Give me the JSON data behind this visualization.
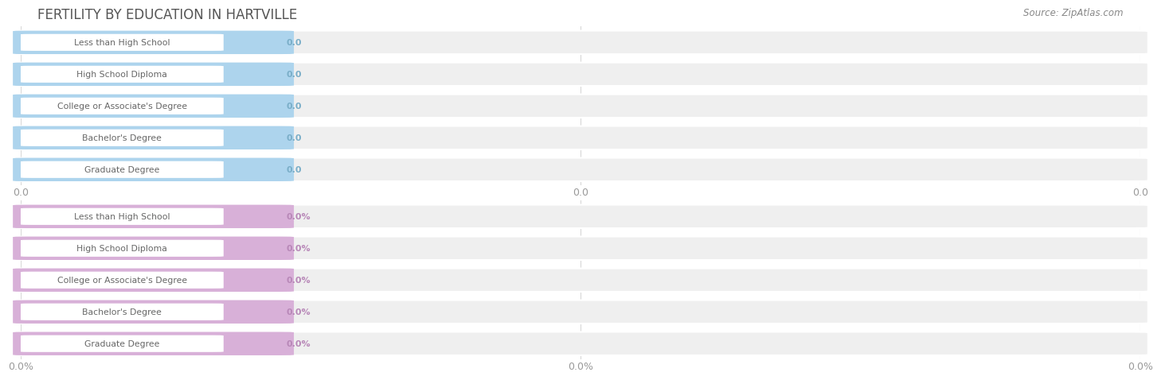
{
  "title": "FERTILITY BY EDUCATION IN HARTVILLE",
  "source": "Source: ZipAtlas.com",
  "categories": [
    "Less than High School",
    "High School Diploma",
    "College or Associate's Degree",
    "Bachelor's Degree",
    "Graduate Degree"
  ],
  "values_top": [
    0.0,
    0.0,
    0.0,
    0.0,
    0.0
  ],
  "values_bottom": [
    0.0,
    0.0,
    0.0,
    0.0,
    0.0
  ],
  "labels_top": [
    "0.0",
    "0.0",
    "0.0",
    "0.0",
    "0.0"
  ],
  "labels_bottom": [
    "0.0%",
    "0.0%",
    "0.0%",
    "0.0%",
    "0.0%"
  ],
  "bar_color_top": "#add4ed",
  "bar_color_bottom": "#d8b0d8",
  "bar_bg_color": "#efefef",
  "text_color": "#666666",
  "title_color": "#555555",
  "axis_tick_color": "#999999",
  "source_color": "#888888",
  "background_color": "#ffffff",
  "xtick_top": [
    "0.0",
    "0.0",
    "0.0"
  ],
  "xtick_bottom": [
    "0.0%",
    "0.0%",
    "0.0%"
  ],
  "value_color_top": "#7aaec8",
  "value_color_bottom": "#b888b8"
}
